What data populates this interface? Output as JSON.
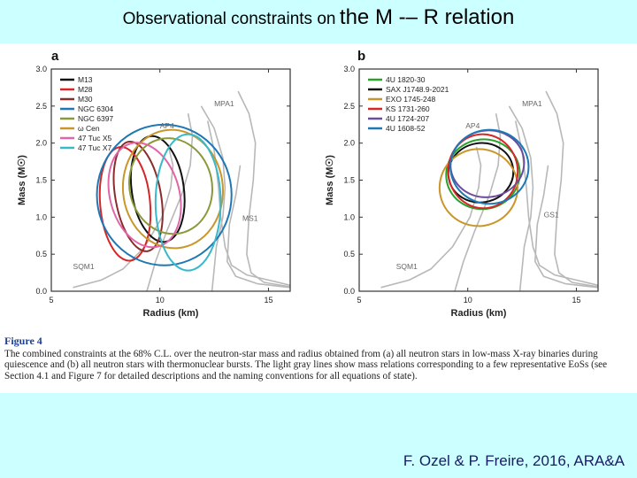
{
  "slide": {
    "title_part1": "Observational constraints on",
    "title_part2": "the M -– R relation",
    "credit": "F. Ozel & P. Freire, 2016, ARA&A"
  },
  "caption": {
    "label": "Figure 4",
    "text": "The combined constraints at the 68% C.L. over the neutron-star mass and radius obtained from (a) all neutron stars in low-mass X-ray binaries during quiescence and (b) all neutron stars with thermonuclear bursts. The light gray lines show mass relations corresponding to a few representative EoSs (see Section 4.1 and Figure 7 for detailed descriptions and the naming conventions for all equations of state)."
  },
  "colors": {
    "eos_gray": "#b8b8b8",
    "axis": "#333333",
    "background": "#ccffff",
    "title_text": "#000000",
    "credit_text": "#1a1a66"
  },
  "chart_data": [
    {
      "panel": "a",
      "type": "line",
      "xlabel": "Radius (km)",
      "ylabel": "Mass (M☉)",
      "xlim": [
        5,
        16
      ],
      "ylim": [
        0,
        3.0
      ],
      "xticks": [
        5,
        10,
        15
      ],
      "yticks": [
        0.0,
        0.5,
        1.0,
        1.5,
        2.0,
        2.5,
        3.0
      ],
      "legend_position": "top-left",
      "eos_labels": [
        {
          "name": "MPA1",
          "x": 12.5,
          "y": 2.5
        },
        {
          "name": "AP4",
          "x": 10.0,
          "y": 2.2
        },
        {
          "name": "MS1",
          "x": 13.8,
          "y": 0.95
        },
        {
          "name": "SQM1",
          "x": 6.0,
          "y": 0.3
        }
      ],
      "series": [
        {
          "name": "M13",
          "color": "#111111",
          "cx": 9.9,
          "cy": 1.38,
          "rx": 1.2,
          "ry": 0.72,
          "rot": -8
        },
        {
          "name": "M28",
          "color": "#d62728",
          "cx": 8.4,
          "cy": 1.18,
          "rx": 1.15,
          "ry": 0.77,
          "rot": -5
        },
        {
          "name": "M30",
          "color": "#8b2c2c",
          "cx": 9.0,
          "cy": 1.28,
          "rx": 1.05,
          "ry": 0.75,
          "rot": -10
        },
        {
          "name": "NGC 6304",
          "color": "#1f77b4",
          "cx": 10.2,
          "cy": 1.3,
          "rx": 3.1,
          "ry": 0.95,
          "rot": 0
        },
        {
          "name": "NGC 6397",
          "color": "#8a9a3a",
          "cx": 10.5,
          "cy": 1.42,
          "rx": 1.9,
          "ry": 0.65,
          "rot": -12
        },
        {
          "name": "ω Cen",
          "color": "#c9962a",
          "cx": 10.6,
          "cy": 1.38,
          "rx": 2.3,
          "ry": 0.8,
          "rot": -5
        },
        {
          "name": "47 Tuc X5",
          "color": "#e066a8",
          "cx": 9.3,
          "cy": 1.3,
          "rx": 1.6,
          "ry": 0.72,
          "rot": -15
        },
        {
          "name": "47 Tuc X7",
          "color": "#39b8c9",
          "cx": 11.3,
          "cy": 1.2,
          "rx": 1.5,
          "ry": 0.92,
          "rot": 0
        }
      ]
    },
    {
      "panel": "b",
      "type": "line",
      "xlabel": "Radius (km)",
      "ylabel": "Mass (M☉)",
      "xlim": [
        5,
        16
      ],
      "ylim": [
        0,
        3.0
      ],
      "xticks": [
        5,
        10,
        15
      ],
      "yticks": [
        0.0,
        0.5,
        1.0,
        1.5,
        2.0,
        2.5,
        3.0
      ],
      "legend_position": "top-left",
      "eos_labels": [
        {
          "name": "MPA1",
          "x": 12.5,
          "y": 2.5
        },
        {
          "name": "AP4",
          "x": 9.9,
          "y": 2.2
        },
        {
          "name": "GS1",
          "x": 13.5,
          "y": 1.0
        },
        {
          "name": "SQM1",
          "x": 6.7,
          "y": 0.3
        }
      ],
      "series": [
        {
          "name": "4U 1820-30",
          "color": "#2ca02c",
          "cx": 10.7,
          "cy": 1.58,
          "rx": 1.7,
          "ry": 0.47,
          "rot": -12
        },
        {
          "name": "SAX J1748.9-2021",
          "color": "#111111",
          "cx": 10.6,
          "cy": 1.6,
          "rx": 1.5,
          "ry": 0.4,
          "rot": -10
        },
        {
          "name": "EXO 1745-248",
          "color": "#c9962a",
          "cx": 10.5,
          "cy": 1.4,
          "rx": 1.8,
          "ry": 0.52,
          "rot": -8
        },
        {
          "name": "KS 1731-260",
          "color": "#d62728",
          "cx": 10.7,
          "cy": 1.62,
          "rx": 1.6,
          "ry": 0.5,
          "rot": -6
        },
        {
          "name": "4U 1724-207",
          "color": "#6a4c9c",
          "cx": 10.9,
          "cy": 1.72,
          "rx": 1.7,
          "ry": 0.45,
          "rot": -10
        },
        {
          "name": "4U 1608-52",
          "color": "#1f77b4",
          "cx": 11.0,
          "cy": 1.68,
          "rx": 1.8,
          "ry": 0.5,
          "rot": 0
        }
      ]
    }
  ]
}
